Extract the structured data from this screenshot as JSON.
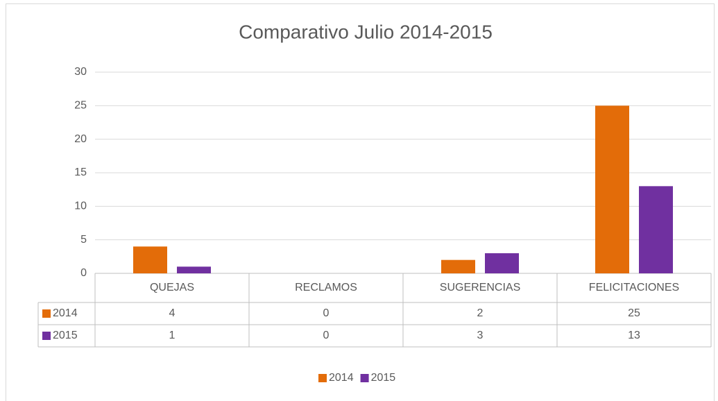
{
  "chart_data": {
    "type": "bar",
    "title": "Comparativo Julio 2014-2015",
    "categories": [
      "QUEJAS",
      "RECLAMOS",
      "SUGERENCIAS",
      "FELICITACIONES"
    ],
    "series": [
      {
        "name": "2014",
        "color": "#e36c09",
        "values": [
          4,
          0,
          2,
          25
        ]
      },
      {
        "name": "2015",
        "color": "#7030a0",
        "values": [
          1,
          0,
          3,
          13
        ]
      }
    ],
    "ylim": [
      0,
      30
    ],
    "yticks": [
      0,
      5,
      10,
      15,
      20,
      25,
      30
    ],
    "grid": true,
    "legend": "bottom",
    "data_table": true
  }
}
